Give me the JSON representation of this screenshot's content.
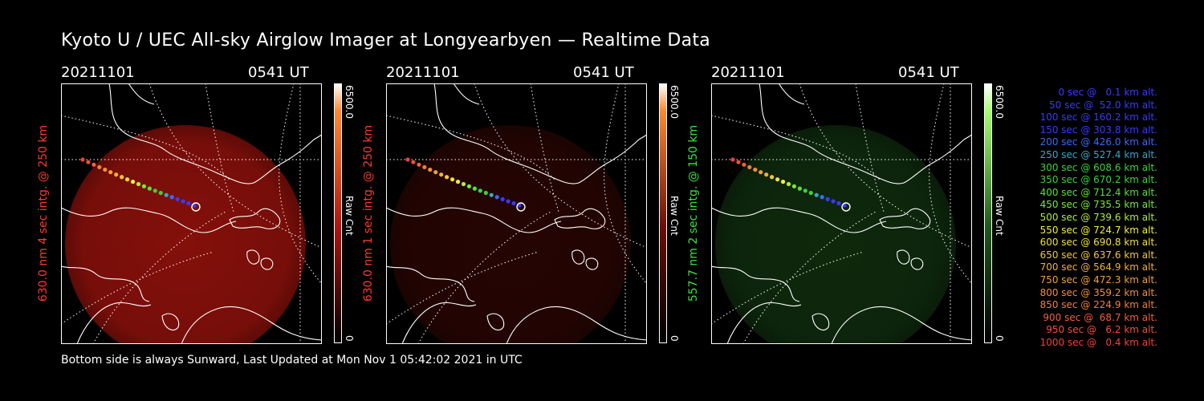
{
  "title": "Kyoto U / UEC All-sky Airglow Imager at Longyearbyen — Realtime Data",
  "panels": [
    {
      "date": "20211101",
      "time": "0541 UT",
      "ylabel": "630.0 nm 4 sec intg. @ 250 km",
      "label_color": "#ff3a2a",
      "cbar_max": "6500.0",
      "cbar_min": "0",
      "cbar_label": "Raw Cnt",
      "glow_color": "#b0150e",
      "glow_level": 0.75,
      "cbar_top": "#ff8a30"
    },
    {
      "date": "20211101",
      "time": "0541 UT",
      "ylabel": "630.0 nm 1 sec intg. @ 250 km",
      "label_color": "#ff3a2a",
      "cbar_max": "6500.0",
      "cbar_min": "0",
      "cbar_label": "Raw Cnt",
      "glow_color": "#6a0e08",
      "glow_level": 0.35,
      "cbar_top": "#ff8a30"
    },
    {
      "date": "20211101",
      "time": "0541 UT",
      "ylabel": "557.7 nm 2 sec intg. @ 150 km",
      "label_color": "#3ce23c",
      "cbar_max": "6500.0",
      "cbar_min": "0",
      "cbar_label": "Raw Cnt",
      "glow_color": "#1f5a1c",
      "glow_level": 0.45,
      "cbar_top": "#a8ff70"
    }
  ],
  "legend": [
    {
      "text": "0 sec @   0.1 km alt.",
      "color": "#3a3aff"
    },
    {
      "text": "50 sec @  52.0 km alt.",
      "color": "#3a3aff"
    },
    {
      "text": "100 sec @ 160.2 km alt.",
      "color": "#3a3aff"
    },
    {
      "text": "150 sec @ 303.8 km alt.",
      "color": "#3a3aff"
    },
    {
      "text": "200 sec @ 426.0 km alt.",
      "color": "#3a6aff"
    },
    {
      "text": "250 sec @ 527.4 km alt.",
      "color": "#3aa6c6"
    },
    {
      "text": "300 sec @ 608.6 km alt.",
      "color": "#3ad23a"
    },
    {
      "text": "350 sec @ 670.2 km alt.",
      "color": "#3ad23a"
    },
    {
      "text": "400 sec @ 712.4 km alt.",
      "color": "#5ae03a"
    },
    {
      "text": "450 sec @ 735.5 km alt.",
      "color": "#7ae83a"
    },
    {
      "text": "500 sec @ 739.6 km alt.",
      "color": "#b0ec3a"
    },
    {
      "text": "550 sec @ 724.7 km alt.",
      "color": "#f0f03a"
    },
    {
      "text": "600 sec @ 690.8 km alt.",
      "color": "#f0e03a"
    },
    {
      "text": "650 sec @ 637.6 km alt.",
      "color": "#f0c83a"
    },
    {
      "text": "700 sec @ 564.9 km alt.",
      "color": "#f0b03a"
    },
    {
      "text": "750 sec @ 472.3 km alt.",
      "color": "#f0a03a"
    },
    {
      "text": "800 sec @ 359.2 km alt.",
      "color": "#f0903a"
    },
    {
      "text": "850 sec @ 224.9 km alt.",
      "color": "#f0803a"
    },
    {
      "text": "900 sec @  68.7 km alt.",
      "color": "#f0603a"
    },
    {
      "text": "950 sec @   6.2 km alt.",
      "color": "#f0503a"
    },
    {
      "text": "1000 sec @   0.4 km alt.",
      "color": "#f0403a"
    }
  ],
  "footer": "Bottom side is always Sunward, Last Updated at Mon Nov  1 05:42:02 2021 in UTC"
}
